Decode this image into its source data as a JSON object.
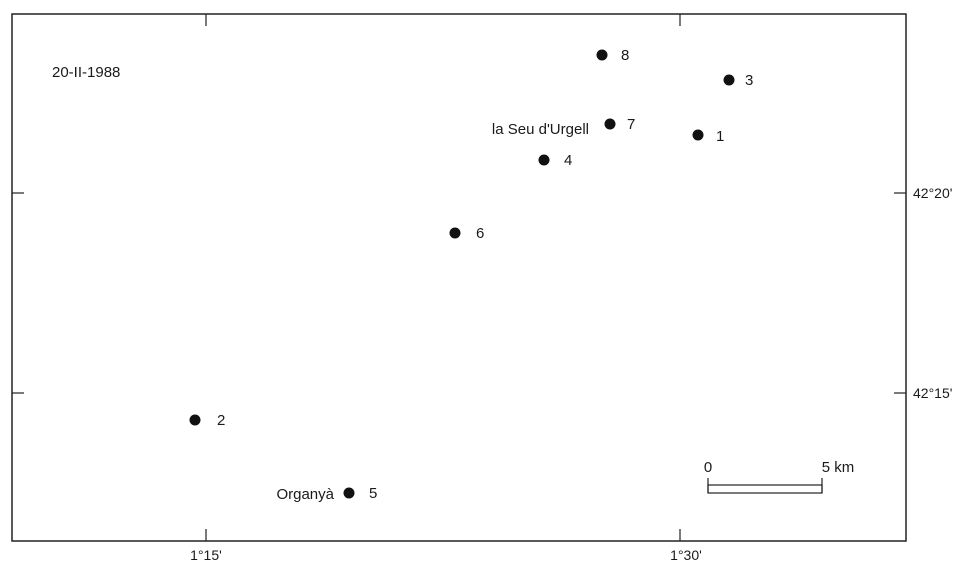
{
  "map": {
    "date_label": "20-II-1988",
    "lon_ticks": [
      {
        "label": "1°15'"
      },
      {
        "label": "1°30'"
      }
    ],
    "lat_ticks": [
      {
        "label": "42°20'"
      },
      {
        "label": "42°15'"
      }
    ],
    "stations": [
      {
        "id": "1",
        "label": "1"
      },
      {
        "id": "2",
        "label": "2"
      },
      {
        "id": "3",
        "label": "3"
      },
      {
        "id": "4",
        "label": "4"
      },
      {
        "id": "5",
        "label": "5"
      },
      {
        "id": "6",
        "label": "6"
      },
      {
        "id": "7",
        "label": "7"
      },
      {
        "id": "8",
        "label": "8"
      }
    ],
    "places": [
      {
        "name": "la Seu d'Urgell"
      },
      {
        "name": "Organyà"
      }
    ],
    "scale_bar": {
      "start_label": "0",
      "end_label": "5 km"
    }
  }
}
